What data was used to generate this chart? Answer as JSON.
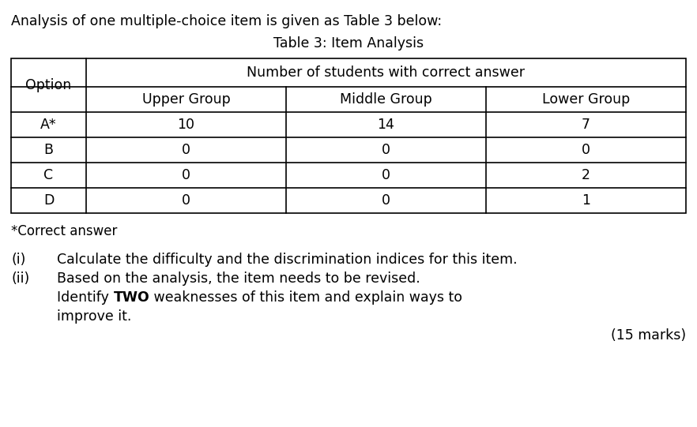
{
  "title_text": "Analysis of one multiple-choice item is given as Table 3 below:",
  "table_title": "Table 3: Item Analysis",
  "col_header_span": "Number of students with correct answer",
  "col_headers": [
    "Option",
    "Upper Group",
    "Middle Group",
    "Lower Group"
  ],
  "rows": [
    [
      "A*",
      "10",
      "14",
      "7"
    ],
    [
      "B",
      "0",
      "0",
      "0"
    ],
    [
      "C",
      "0",
      "0",
      "2"
    ],
    [
      "D",
      "0",
      "0",
      "1"
    ]
  ],
  "footnote": "*Correct answer",
  "questions": [
    {
      "label": "(i)",
      "text": "Calculate the difficulty and the discrimination indices for this item."
    },
    {
      "label": "(ii)",
      "text_line1": "Based on the analysis, the item needs to be revised.",
      "text_line2_prefix": "Identify ",
      "text_line2_bold": "TWO",
      "text_line2_suffix": " weaknesses of this item and explain ways to",
      "text_line3": "improve it."
    }
  ],
  "marks": "(15 marks)",
  "bg_color": "#ffffff",
  "text_color": "#000000",
  "font_size_main": 12.5,
  "font_size_table": 12.5,
  "font_family": "DejaVu Sans"
}
